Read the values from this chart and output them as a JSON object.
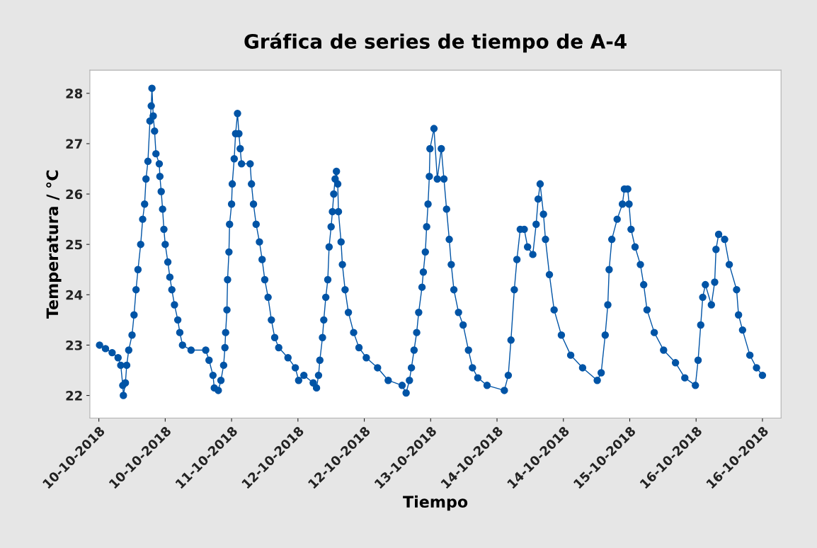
{
  "chart_data": {
    "type": "line",
    "title": "Gráfica de series de tiempo de A-4",
    "xlabel": "Tiempo",
    "ylabel": "Temperatura / °C",
    "xlim": [
      "2018-10-09T23:50",
      "2018-10-16T22:29"
    ],
    "ylim": [
      21.55,
      28.46
    ],
    "xticks": [
      {
        "value": "2018-10-10T02:00",
        "label": "10-10-2018"
      },
      {
        "value": "2018-10-10T18:00",
        "label": "10-10-2018"
      },
      {
        "value": "2018-10-11T10:00",
        "label": "11-10-2018"
      },
      {
        "value": "2018-10-12T02:00",
        "label": "12-10-2018"
      },
      {
        "value": "2018-10-12T18:00",
        "label": "12-10-2018"
      },
      {
        "value": "2018-10-13T10:00",
        "label": "13-10-2018"
      },
      {
        "value": "2018-10-14T02:00",
        "label": "14-10-2018"
      },
      {
        "value": "2018-10-14T18:00",
        "label": "14-10-2018"
      },
      {
        "value": "2018-10-15T10:00",
        "label": "15-10-2018"
      },
      {
        "value": "2018-10-16T02:00",
        "label": "16-10-2018"
      },
      {
        "value": "2018-10-16T18:00",
        "label": "16-10-2018"
      }
    ],
    "yticks": [
      22,
      23,
      24,
      25,
      26,
      27,
      28
    ],
    "grid": false,
    "legend": false,
    "marker": "circle",
    "line_style": "solid",
    "series": [
      {
        "color": "#0054a6",
        "x": [
          "2018-10-10T02:10",
          "2018-10-10T03:36",
          "2018-10-10T05:12",
          "2018-10-10T06:38",
          "2018-10-10T07:17",
          "2018-10-10T07:46",
          "2018-10-10T07:55",
          "2018-10-10T08:24",
          "2018-10-10T08:43",
          "2018-10-10T09:12",
          "2018-10-10T10:00",
          "2018-10-10T10:29",
          "2018-10-10T10:58",
          "2018-10-10T11:26",
          "2018-10-10T12:05",
          "2018-10-10T12:34",
          "2018-10-10T13:02",
          "2018-10-10T13:22",
          "2018-10-10T13:50",
          "2018-10-10T14:19",
          "2018-10-10T14:38",
          "2018-10-10T14:48",
          "2018-10-10T15:07",
          "2018-10-10T15:26",
          "2018-10-10T15:46",
          "2018-10-10T16:34",
          "2018-10-10T16:43",
          "2018-10-10T17:02",
          "2018-10-10T17:22",
          "2018-10-10T17:41",
          "2018-10-10T18:00",
          "2018-10-10T18:38",
          "2018-10-10T19:07",
          "2018-10-10T19:36",
          "2018-10-10T20:14",
          "2018-10-10T21:02",
          "2018-10-10T21:31",
          "2018-10-10T22:10",
          "2018-10-11T00:14",
          "2018-10-11T03:46",
          "2018-10-11T04:34",
          "2018-10-11T05:31",
          "2018-10-11T05:50",
          "2018-10-11T06:48",
          "2018-10-11T07:26",
          "2018-10-11T08:05",
          "2018-10-11T08:24",
          "2018-10-11T08:34",
          "2018-10-11T08:53",
          "2018-10-11T09:02",
          "2018-10-11T09:22",
          "2018-10-11T09:31",
          "2018-10-11T10:00",
          "2018-10-11T10:10",
          "2018-10-11T10:38",
          "2018-10-11T10:58",
          "2018-10-11T11:26",
          "2018-10-11T11:46",
          "2018-10-11T12:05",
          "2018-10-11T12:24",
          "2018-10-11T14:29",
          "2018-10-11T14:48",
          "2018-10-11T15:17",
          "2018-10-11T15:55",
          "2018-10-11T16:43",
          "2018-10-11T17:22",
          "2018-10-11T18:00",
          "2018-10-11T18:48",
          "2018-10-11T19:36",
          "2018-10-11T20:24",
          "2018-10-11T21:22",
          "2018-10-11T23:36",
          "2018-10-12T01:22",
          "2018-10-12T02:10",
          "2018-10-12T03:26",
          "2018-10-12T05:41",
          "2018-10-12T06:29",
          "2018-10-12T06:58",
          "2018-10-12T07:17",
          "2018-10-12T07:55",
          "2018-10-12T08:14",
          "2018-10-12T08:43",
          "2018-10-12T09:12",
          "2018-10-12T09:31",
          "2018-10-12T10:00",
          "2018-10-12T10:19",
          "2018-10-12T10:38",
          "2018-10-12T10:58",
          "2018-10-12T11:17",
          "2018-10-12T11:36",
          "2018-10-12T11:46",
          "2018-10-12T12:24",
          "2018-10-12T12:43",
          "2018-10-12T13:22",
          "2018-10-12T14:10",
          "2018-10-12T15:26",
          "2018-10-12T16:43",
          "2018-10-12T18:29",
          "2018-10-12T21:12",
          "2018-10-12T23:46",
          "2018-10-13T03:07",
          "2018-10-13T04:05",
          "2018-10-13T04:53",
          "2018-10-13T05:22",
          "2018-10-13T06:00",
          "2018-10-13T06:38",
          "2018-10-13T07:07",
          "2018-10-13T07:55",
          "2018-10-13T08:14",
          "2018-10-13T08:43",
          "2018-10-13T09:02",
          "2018-10-13T09:22",
          "2018-10-13T09:41",
          "2018-10-13T09:50",
          "2018-10-13T10:48",
          "2018-10-13T11:36",
          "2018-10-13T12:34",
          "2018-10-13T13:12",
          "2018-10-13T13:50",
          "2018-10-13T14:29",
          "2018-10-13T14:58",
          "2018-10-13T15:36",
          "2018-10-13T16:43",
          "2018-10-13T17:50",
          "2018-10-13T19:07",
          "2018-10-13T20:05",
          "2018-10-13T21:22",
          "2018-10-13T23:36",
          "2018-10-14T03:46",
          "2018-10-14T04:43",
          "2018-10-14T05:22",
          "2018-10-14T06:10",
          "2018-10-14T06:48",
          "2018-10-14T07:36",
          "2018-10-14T08:34",
          "2018-10-14T09:22",
          "2018-10-14T10:38",
          "2018-10-14T11:26",
          "2018-10-14T11:55",
          "2018-10-14T12:24",
          "2018-10-14T13:12",
          "2018-10-14T13:41",
          "2018-10-14T14:38",
          "2018-10-14T15:46",
          "2018-10-14T17:31",
          "2018-10-14T19:46",
          "2018-10-14T22:38",
          "2018-10-15T02:10",
          "2018-10-15T03:07",
          "2018-10-15T04:05",
          "2018-10-15T04:43",
          "2018-10-15T05:02",
          "2018-10-15T05:41",
          "2018-10-15T06:58",
          "2018-10-15T08:14",
          "2018-10-15T08:43",
          "2018-10-15T09:31",
          "2018-10-15T09:50",
          "2018-10-15T10:19",
          "2018-10-15T11:17",
          "2018-10-15T12:34",
          "2018-10-15T13:22",
          "2018-10-15T14:10",
          "2018-10-15T15:55",
          "2018-10-15T18:10",
          "2018-10-15T21:02",
          "2018-10-15T23:17",
          "2018-10-16T01:50",
          "2018-10-16T02:29",
          "2018-10-16T03:07",
          "2018-10-16T03:36",
          "2018-10-16T04:14",
          "2018-10-16T05:41",
          "2018-10-16T06:29",
          "2018-10-16T06:48",
          "2018-10-16T07:26",
          "2018-10-16T08:53",
          "2018-10-16T10:00",
          "2018-10-16T11:46",
          "2018-10-16T12:14",
          "2018-10-16T13:12",
          "2018-10-16T14:58",
          "2018-10-16T16:34",
          "2018-10-16T18:00"
        ],
        "values": [
          23.0,
          22.93,
          22.85,
          22.75,
          22.6,
          22.2,
          22.0,
          22.25,
          22.6,
          22.9,
          23.2,
          23.6,
          24.1,
          24.5,
          25.0,
          25.5,
          25.8,
          26.3,
          26.65,
          27.45,
          27.75,
          28.1,
          27.55,
          27.25,
          26.8,
          26.6,
          26.35,
          26.05,
          25.7,
          25.3,
          25.0,
          24.65,
          24.35,
          24.1,
          23.8,
          23.5,
          23.25,
          23.0,
          22.9,
          22.9,
          22.7,
          22.4,
          22.15,
          22.1,
          22.3,
          22.6,
          22.95,
          23.25,
          23.7,
          24.3,
          24.85,
          25.4,
          25.8,
          26.2,
          26.7,
          27.2,
          27.6,
          27.2,
          26.9,
          26.6,
          26.6,
          26.2,
          25.8,
          25.4,
          25.05,
          24.7,
          24.3,
          23.95,
          23.5,
          23.15,
          22.95,
          22.75,
          22.55,
          22.3,
          22.4,
          22.25,
          22.15,
          22.4,
          22.7,
          23.15,
          23.5,
          23.95,
          24.3,
          24.95,
          25.35,
          25.65,
          26.0,
          26.3,
          26.45,
          26.2,
          25.65,
          25.05,
          24.6,
          24.1,
          23.65,
          23.25,
          22.95,
          22.75,
          22.55,
          22.3,
          22.2,
          22.05,
          22.3,
          22.55,
          22.9,
          23.25,
          23.65,
          24.15,
          24.45,
          24.85,
          25.35,
          25.8,
          26.35,
          26.9,
          27.3,
          26.3,
          26.9,
          26.3,
          25.7,
          25.1,
          24.6,
          24.1,
          23.65,
          23.4,
          22.9,
          22.55,
          22.35,
          22.2,
          22.1,
          22.4,
          23.1,
          24.1,
          24.7,
          25.3,
          25.3,
          24.95,
          24.8,
          25.4,
          25.9,
          26.2,
          25.6,
          25.1,
          24.4,
          23.7,
          23.2,
          22.8,
          22.55,
          22.3,
          22.45,
          23.2,
          23.8,
          24.5,
          25.1,
          25.5,
          25.8,
          26.1,
          26.1,
          25.8,
          25.3,
          24.95,
          24.6,
          24.2,
          23.7,
          23.25,
          22.9,
          22.65,
          22.35,
          22.2,
          22.7,
          23.4,
          23.95,
          24.2,
          23.8,
          24.25,
          24.9,
          25.2,
          25.1,
          24.6,
          24.1,
          23.6,
          23.3,
          22.8,
          22.55,
          22.4
        ]
      }
    ]
  }
}
